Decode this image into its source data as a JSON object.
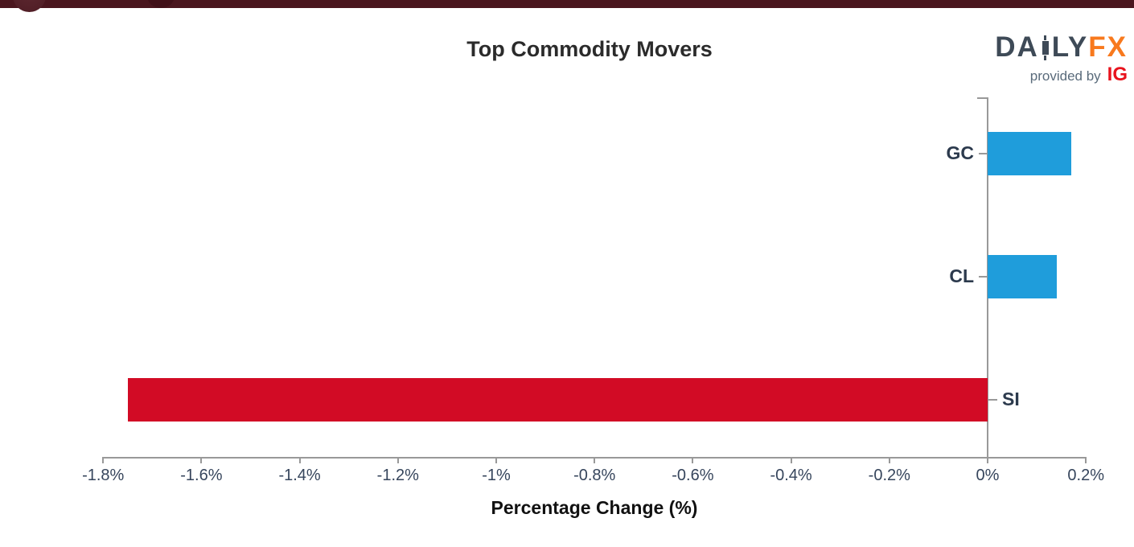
{
  "banner": {
    "strip_color": "#4a161e",
    "corner_circle_color": "#5d2830",
    "inner_ellipse_color": "#401018"
  },
  "header": {
    "title": "Top Commodity Movers",
    "title_color": "#2b2b2b"
  },
  "branding": {
    "logo_da": "DA",
    "logo_ly": "LY",
    "logo_fx": "FX",
    "provided_by": "provided by",
    "ig": "IG",
    "slate_color": "#3e4a57",
    "orange_color": "#f8791d",
    "provided_by_color": "#5a6b7b",
    "ig_red_color": "#e8131d"
  },
  "chart_data": {
    "type": "bar",
    "orientation": "horizontal",
    "title": "Top Commodity Movers",
    "xlabel": "Percentage Change (%)",
    "categories": [
      "GC",
      "CL",
      "SI"
    ],
    "values": [
      0.17,
      0.14,
      -1.75
    ],
    "bar_colors": [
      "#1f9ddb",
      "#1f9ddb",
      "#d20b25"
    ],
    "positive_color": "#1f9ddb",
    "negative_color": "#d20b25",
    "xlim": [
      -1.8,
      0.2
    ],
    "xticks": [
      -1.8,
      -1.6,
      -1.4,
      -1.2,
      -1.0,
      -0.8,
      -0.6,
      -0.4,
      -0.2,
      0,
      0.2
    ],
    "xtick_labels": [
      "-1.8%",
      "-1.6%",
      "-1.4%",
      "-1.2%",
      "-1%",
      "-0.8%",
      "-0.6%",
      "-0.4%",
      "-0.2%",
      "0%",
      "0.2%"
    ],
    "grid": false,
    "legend": null,
    "axis_color": "#999999",
    "tick_label_color": "#36455c",
    "category_label_color": "#2c3a4d",
    "xlabel_color": "#111111"
  }
}
